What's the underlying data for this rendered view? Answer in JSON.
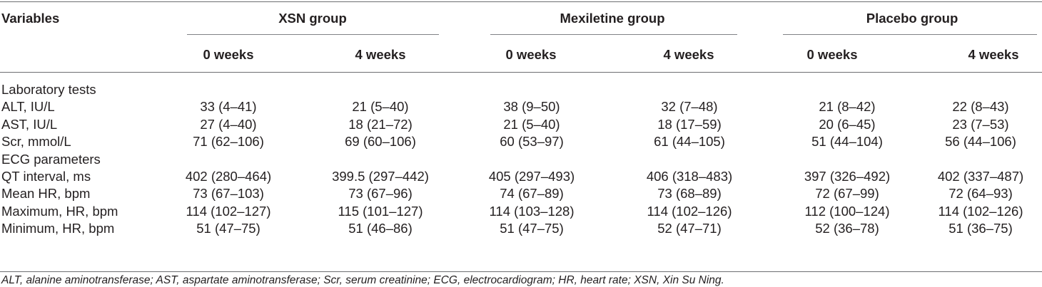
{
  "header": {
    "variables_label": "Variables",
    "groups": [
      "XSN group",
      "Mexiletine group",
      "Placebo group"
    ],
    "timepoints": [
      "0 weeks",
      "4 weeks",
      "0 weeks",
      "4 weeks",
      "0 weeks",
      "4 weeks"
    ]
  },
  "rows": [
    {
      "label": "Laboratory tests",
      "section": true,
      "values": []
    },
    {
      "label": "ALT, IU/L",
      "section": false,
      "values": [
        "33 (4–41)",
        "21 (5–40)",
        "38 (9–50)",
        "32 (7–48)",
        "21 (8–42)",
        "22 (8–43)"
      ]
    },
    {
      "label": "AST, IU/L",
      "section": false,
      "values": [
        "27 (4–40)",
        "18 (21–72)",
        "21 (5–40)",
        "18 (17–59)",
        "20 (6–45)",
        "23 (7–53)"
      ]
    },
    {
      "label": "Scr, mmol/L",
      "section": false,
      "values": [
        "71 (62–106)",
        "69 (60–106)",
        "60 (53–97)",
        "61 (44–105)",
        "51 (44–104)",
        "56 (44–106)"
      ]
    },
    {
      "label": "ECG parameters",
      "section": true,
      "values": []
    },
    {
      "label": "QT interval, ms",
      "section": false,
      "values": [
        "402 (280–464)",
        "399.5 (297–442)",
        "405 (297–493)",
        "406 (318–483)",
        "397 (326–492)",
        "402 (337–487)"
      ]
    },
    {
      "label": "Mean HR, bpm",
      "section": false,
      "values": [
        "73 (67–103)",
        "73 (67–96)",
        "74 (67–89)",
        "73 (68–89)",
        "72 (67–99)",
        "72 (64–93)"
      ]
    },
    {
      "label": "Maximum, HR, bpm",
      "section": false,
      "values": [
        "114 (102–127)",
        "115 (101–127)",
        "114 (103–128)",
        "114 (102–126)",
        "112 (100–124)",
        "114 (102–126)"
      ]
    },
    {
      "label": "Minimum, HR, bpm",
      "section": false,
      "values": [
        "51 (47–75)",
        "51 (46–86)",
        "51 (47–75)",
        "52 (47–71)",
        "52 (36–78)",
        "51 (36–75)"
      ]
    }
  ],
  "footnote": "ALT, alanine aminotransferase; AST, aspartate aminotransferase; Scr, serum creatinine; ECG, electrocardiogram; HR, heart rate; XSN, Xin Su Ning."
}
